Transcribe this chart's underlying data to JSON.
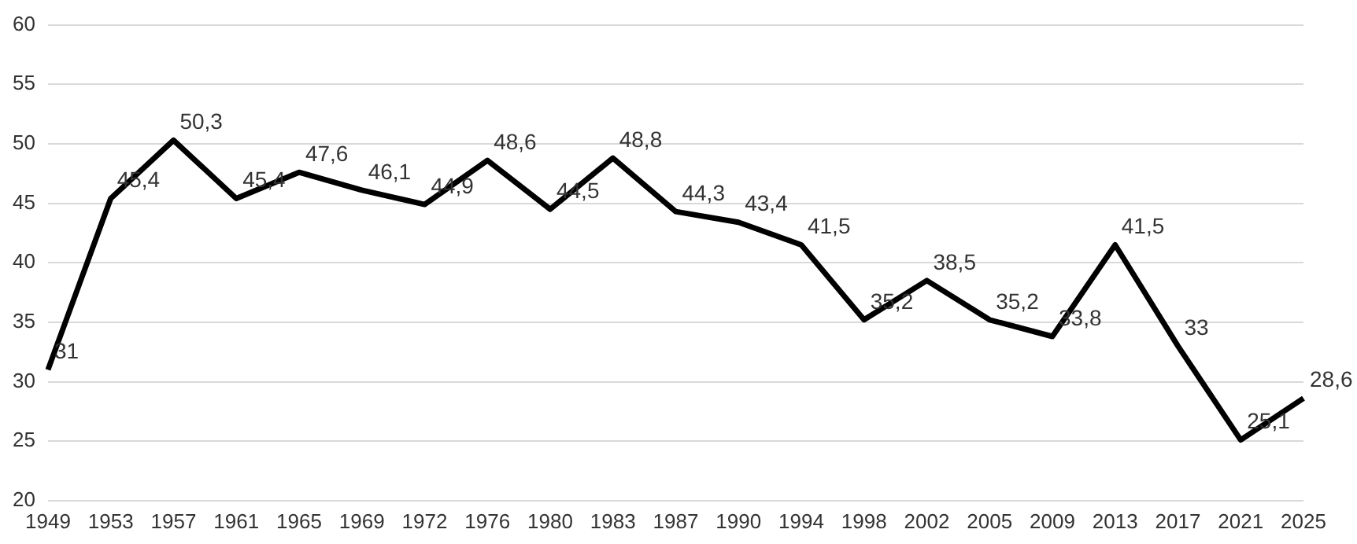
{
  "chart_data": {
    "type": "line",
    "categories": [
      "1949",
      "1953",
      "1957",
      "1961",
      "1965",
      "1969",
      "1972",
      "1976",
      "1980",
      "1983",
      "1987",
      "1990",
      "1994",
      "1998",
      "2002",
      "2005",
      "2009",
      "2013",
      "2017",
      "2021",
      "2025"
    ],
    "series": [
      {
        "color": "#000000",
        "values": [
          31,
          45.4,
          50.3,
          45.4,
          47.6,
          46.1,
          44.9,
          48.6,
          44.5,
          48.8,
          44.3,
          43.4,
          41.5,
          35.2,
          38.5,
          35.2,
          33.8,
          41.5,
          33,
          25.1,
          28.6
        ],
        "value_labels": [
          "31",
          "45,4",
          "50,3",
          "45,4",
          "47,6",
          "46,1",
          "44,9",
          "48,6",
          "44,5",
          "48,8",
          "44,3",
          "43,4",
          "41,5",
          "35,2",
          "38,5",
          "35,2",
          "33,8",
          "41,5",
          "33",
          "25,1",
          "28,6"
        ]
      }
    ],
    "ylim": [
      20,
      60
    ],
    "yticks": [
      20,
      25,
      30,
      35,
      40,
      45,
      50,
      55,
      60
    ],
    "grid": "y",
    "legend": false,
    "marker": "none",
    "line_style": "solid"
  }
}
